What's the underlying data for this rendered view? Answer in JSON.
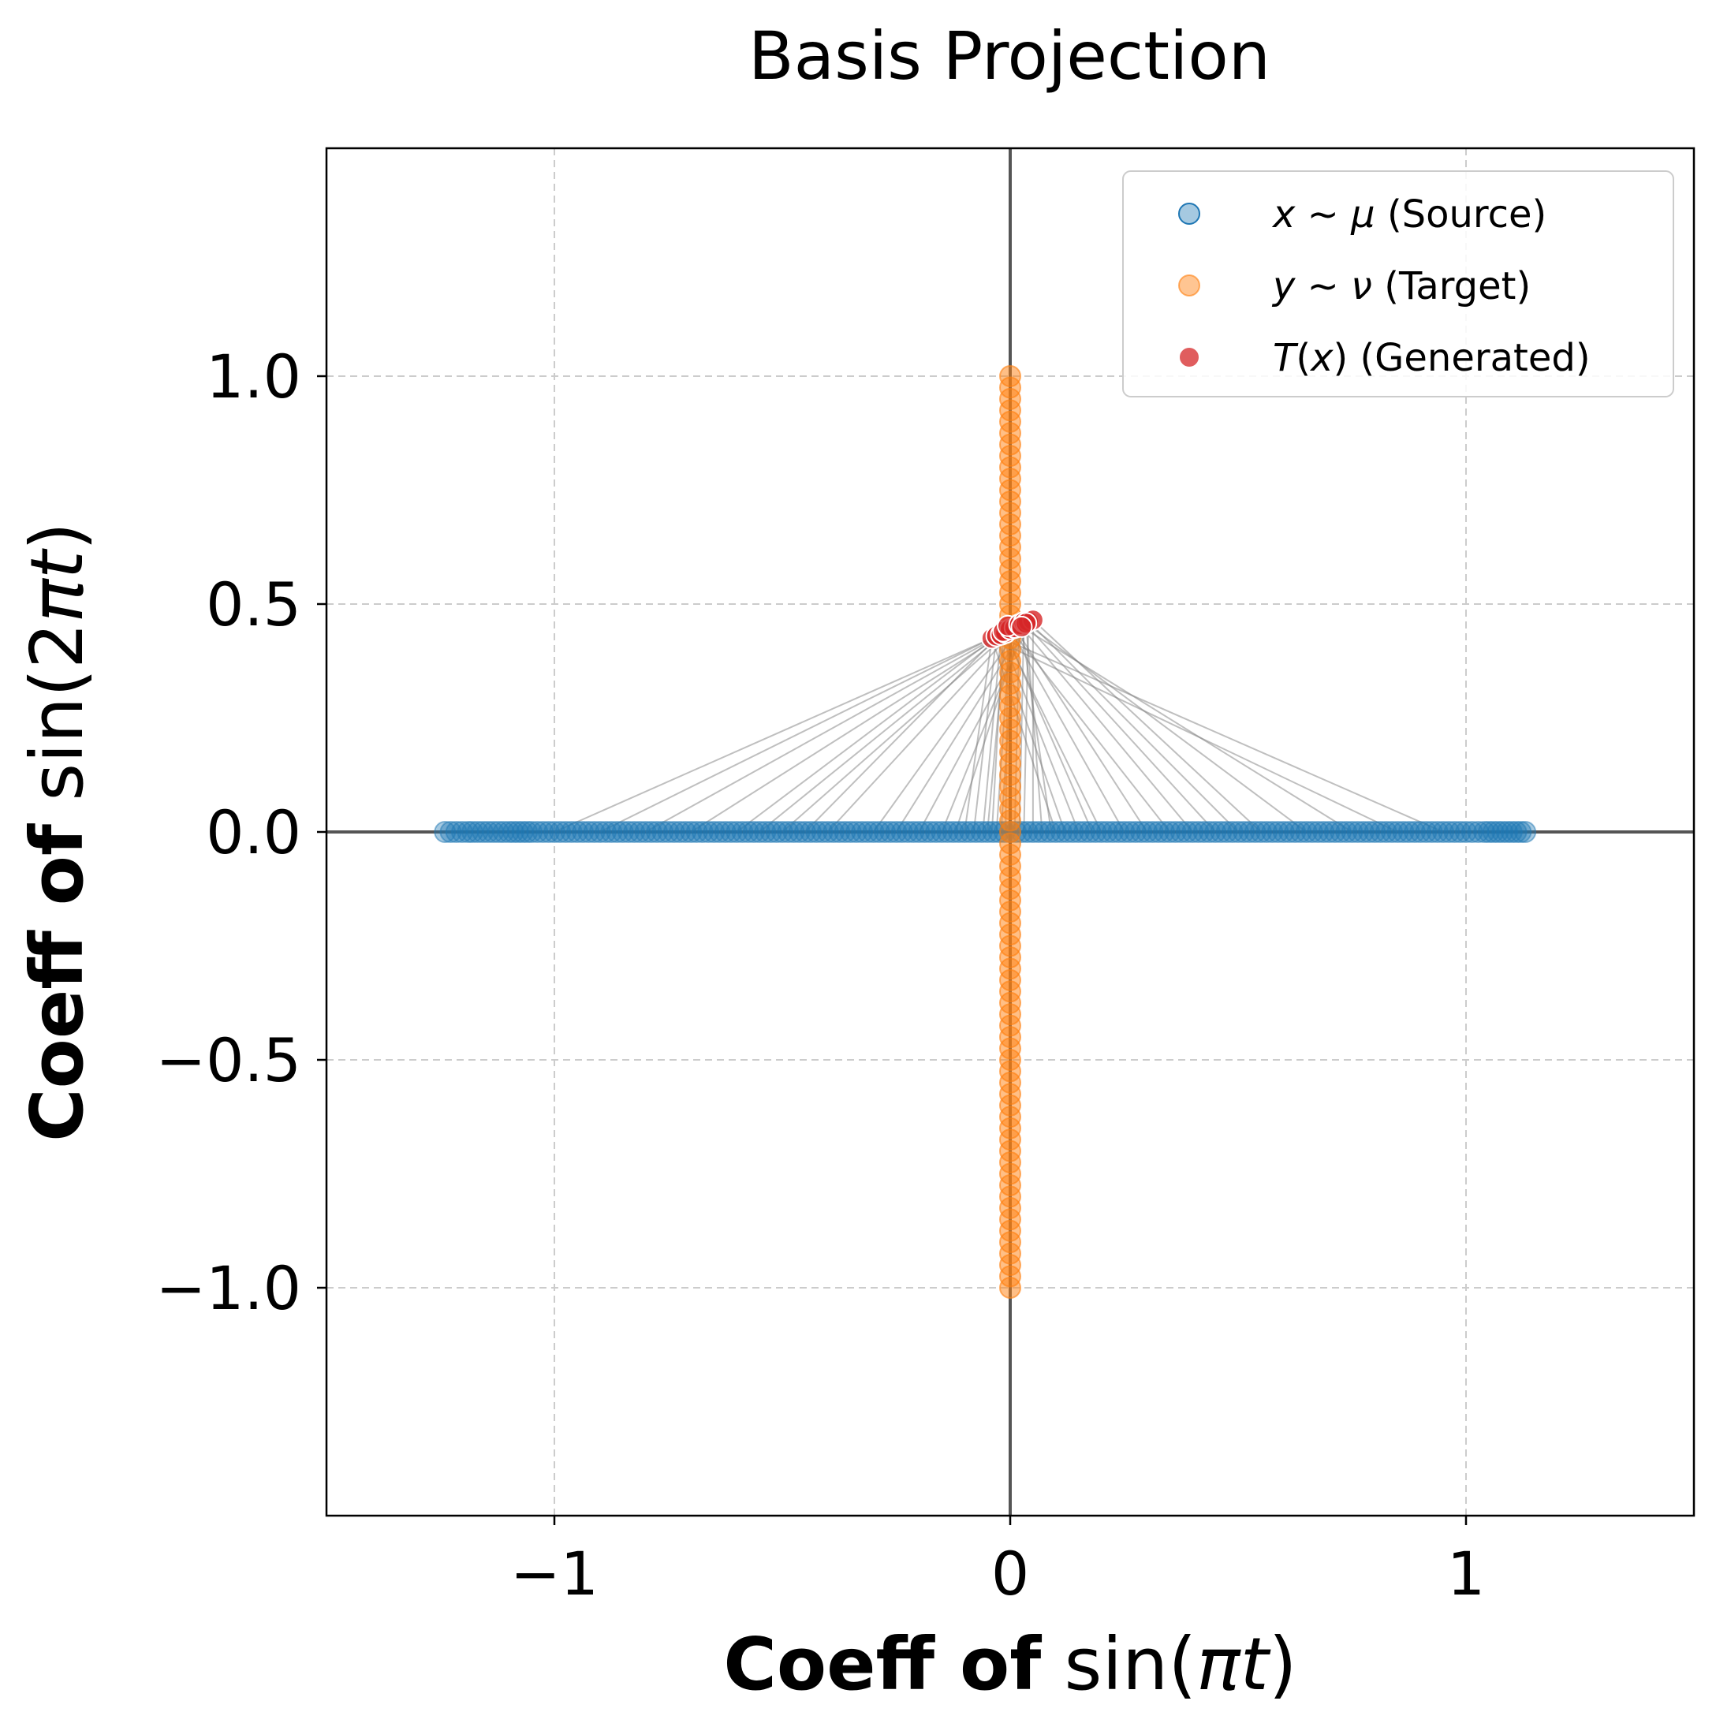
{
  "chart_data": {
    "type": "scatter",
    "title": "Basis Projection",
    "xlabel": {
      "bold": "Coeff of",
      "func": "sin(",
      "var": "πt",
      "close": ")"
    },
    "ylabel": {
      "bold": "Coeff of",
      "func": "sin(2",
      "var": "πt",
      "close": ")"
    },
    "xlim": [
      -1.5,
      1.5
    ],
    "ylim": [
      -1.5,
      1.5
    ],
    "xticks": [
      -1,
      0,
      1
    ],
    "xtick_labels": [
      "−1",
      "0",
      "1"
    ],
    "yticks": [
      1.0,
      0.5,
      0.0,
      -0.5,
      -1.0
    ],
    "ytick_labels": [
      "1.0",
      "0.5",
      "0.0",
      "−0.5",
      "−1.0"
    ],
    "grid": true,
    "legend_position": "top-right",
    "colors": {
      "source": "#1f77b4",
      "target": "#ff7f0e",
      "generated": "#d62728",
      "connector": "#808080",
      "zero_axis": "#555555"
    },
    "series": [
      {
        "key": "source",
        "name": "Source",
        "legend": {
          "var": "x",
          "op": " ∼ ",
          "sym": "μ",
          "rest": " (Source)"
        },
        "x": [
          -1.24,
          -1.19,
          -1.18,
          -1.1,
          -1.08,
          -1.05,
          -1.0,
          -0.95,
          -0.9,
          -0.85,
          -0.8,
          -0.75,
          -0.7,
          -0.65,
          -0.6,
          -0.55,
          -0.5,
          -0.45,
          -0.4,
          -0.35,
          -0.3,
          -0.25,
          -0.2,
          -0.15,
          -0.1,
          -0.05,
          0.0,
          0.05,
          0.1,
          0.15,
          0.2,
          0.25,
          0.3,
          0.35,
          0.4,
          0.45,
          0.5,
          0.55,
          0.6,
          0.65,
          0.7,
          0.75,
          0.8,
          0.85,
          0.9,
          0.95,
          1.0,
          1.04,
          1.07,
          1.09,
          1.11,
          1.12,
          1.13
        ],
        "y": 0.0
      },
      {
        "key": "target",
        "name": "Target",
        "legend": {
          "var": "y",
          "op": " ∼ ",
          "sym": "ν",
          "rest": " (Target)"
        },
        "x": 0.0,
        "y_range": [
          -1.0,
          1.0
        ],
        "count": 81
      },
      {
        "key": "generated",
        "name": "Generated",
        "legend": {
          "var": "T",
          "op": "(",
          "sym": "x",
          "rest": ") (Generated)"
        },
        "points": [
          [
            -0.04,
            0.425
          ],
          [
            -0.03,
            0.43
          ],
          [
            -0.02,
            0.433
          ],
          [
            -0.01,
            0.437
          ],
          [
            -0.015,
            0.44
          ],
          [
            0.0,
            0.445
          ],
          [
            0.01,
            0.448
          ],
          [
            -0.005,
            0.452
          ],
          [
            0.02,
            0.455
          ],
          [
            0.03,
            0.46
          ],
          [
            0.04,
            0.462
          ],
          [
            0.05,
            0.465
          ],
          [
            0.035,
            0.458
          ],
          [
            0.025,
            0.45
          ]
        ]
      }
    ],
    "connectors": {
      "description": "T(x) links",
      "source_x": [
        -1.0,
        -0.9,
        -0.8,
        -0.7,
        -0.6,
        -0.55,
        -0.5,
        -0.45,
        -0.4,
        -0.3,
        -0.25,
        -0.2,
        -0.15,
        -0.12,
        -0.1,
        -0.08,
        -0.06,
        -0.05,
        -0.04,
        -0.03,
        -0.02,
        -0.01,
        0.01,
        0.02,
        0.03,
        0.05,
        0.07,
        0.09,
        0.1,
        0.12,
        0.15,
        0.18,
        0.2,
        0.25,
        0.3,
        0.35,
        0.4,
        0.45,
        0.5,
        0.55,
        0.65,
        0.75,
        0.85,
        0.95
      ]
    }
  }
}
